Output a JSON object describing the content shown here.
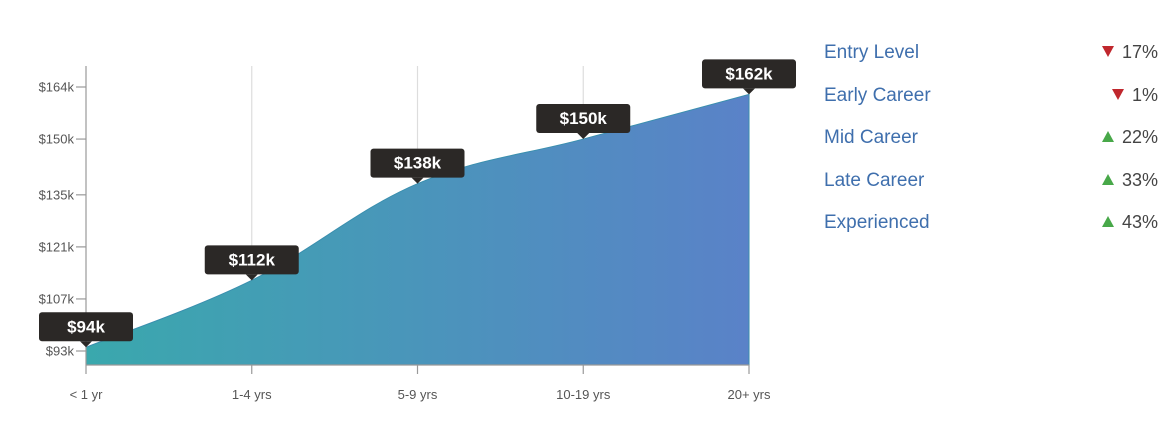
{
  "chart_data": {
    "type": "area",
    "categories": [
      "< 1 yr",
      "1-4 yrs",
      "5-9 yrs",
      "10-19 yrs",
      "20+ yrs"
    ],
    "values": [
      94,
      112,
      138,
      150,
      162
    ],
    "value_labels": [
      "$94k",
      "$112k",
      "$138k",
      "$150k",
      "$162k"
    ],
    "y_ticks": [
      {
        "value": 93,
        "label": "$93k"
      },
      {
        "value": 107,
        "label": "$107k"
      },
      {
        "value": 121,
        "label": "$121k"
      },
      {
        "value": 135,
        "label": "$135k"
      },
      {
        "value": 150,
        "label": "$150k"
      },
      {
        "value": 164,
        "label": "$164k"
      }
    ],
    "ylim": [
      93,
      164
    ],
    "xlabel": "",
    "ylabel": "",
    "grid": "vertical",
    "gradient": [
      "#3aa8ad",
      "#5a82c8"
    ]
  },
  "legend": {
    "items": [
      {
        "label": "Entry Level",
        "direction": "down",
        "change": "17%"
      },
      {
        "label": "Early Career",
        "direction": "down",
        "change": "1%"
      },
      {
        "label": "Mid Career",
        "direction": "up",
        "change": "22%"
      },
      {
        "label": "Late Career",
        "direction": "up",
        "change": "33%"
      },
      {
        "label": "Experienced",
        "direction": "up",
        "change": "43%"
      }
    ]
  },
  "colors": {
    "label_bubble": "#2b2826",
    "legend_text": "#3f6fad",
    "arrow_down": "#c0272d",
    "arrow_up": "#48a849"
  }
}
